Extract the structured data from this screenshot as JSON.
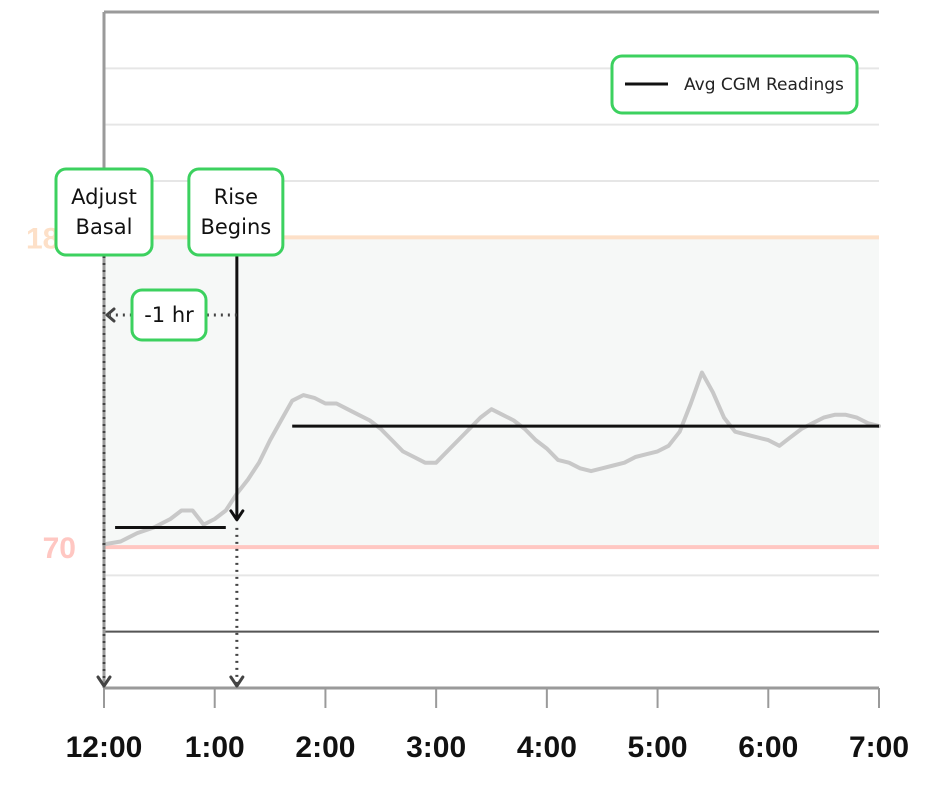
{
  "chart_data": {
    "type": "line",
    "title": "",
    "xlabel": "",
    "ylabel": "",
    "x_tick_labels": [
      "12:00",
      "1:00",
      "2:00",
      "3:00",
      "4:00",
      "5:00",
      "6:00",
      "7:00"
    ],
    "xlim": [
      0,
      7
    ],
    "ylim": [
      20,
      260
    ],
    "grid": true,
    "thresholds": [
      {
        "label": "180",
        "value": 180,
        "color": "#fde0c8"
      },
      {
        "label": "70",
        "value": 70,
        "color": "#ffc7c2"
      }
    ],
    "target_band": [
      70,
      180
    ],
    "legend": {
      "position": "top-right",
      "label": "Avg CGM Readings"
    },
    "series": [
      {
        "name": "Avg CGM Readings",
        "color": "#111111",
        "x": [
          0.1,
          1.1,
          1.1,
          1.7,
          1.7,
          7.0
        ],
        "y": [
          77,
          77,
          null,
          113,
          113,
          113
        ]
      }
    ],
    "cgm_trace": {
      "color": "#c8c8c8",
      "x": [
        0.0,
        0.15,
        0.3,
        0.45,
        0.6,
        0.7,
        0.8,
        0.9,
        1.0,
        1.1,
        1.2,
        1.3,
        1.4,
        1.5,
        1.6,
        1.7,
        1.8,
        1.9,
        2.0,
        2.1,
        2.2,
        2.3,
        2.4,
        2.5,
        2.6,
        2.7,
        2.8,
        2.9,
        3.0,
        3.1,
        3.2,
        3.3,
        3.4,
        3.5,
        3.6,
        3.7,
        3.8,
        3.9,
        4.0,
        4.1,
        4.2,
        4.3,
        4.4,
        4.5,
        4.6,
        4.7,
        4.8,
        4.9,
        5.0,
        5.1,
        5.2,
        5.3,
        5.4,
        5.5,
        5.6,
        5.7,
        5.8,
        5.9,
        6.0,
        6.1,
        6.2,
        6.3,
        6.4,
        6.5,
        6.6,
        6.7,
        6.8,
        6.9,
        7.0
      ],
      "y": [
        71,
        72,
        75,
        77,
        80,
        83,
        83,
        78,
        80,
        83,
        89,
        94,
        100,
        108,
        115,
        122,
        124,
        123,
        121,
        121,
        119,
        117,
        115,
        112,
        108,
        104,
        102,
        100,
        100,
        104,
        108,
        112,
        116,
        119,
        117,
        115,
        112,
        108,
        105,
        101,
        100,
        98,
        97,
        98,
        99,
        100,
        102,
        103,
        104,
        106,
        111,
        121,
        132,
        125,
        116,
        111,
        110,
        109,
        108,
        106,
        109,
        112,
        114,
        116,
        117,
        117,
        116,
        114,
        113
      ]
    },
    "annotations": [
      {
        "lines": [
          "Adjust",
          "Basal"
        ],
        "x": 0.0
      },
      {
        "lines": [
          "Rise",
          "Begins"
        ],
        "x": 1.2
      },
      {
        "label": "-1 hr",
        "from_x": 1.2,
        "to_x": 0.0
      }
    ]
  }
}
